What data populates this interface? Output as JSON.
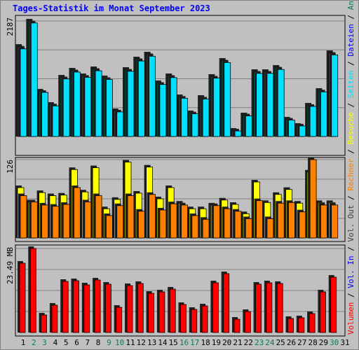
{
  "chart_data": {
    "type": "bar",
    "title": "Tages-Statistik im Monat September 2023",
    "categories": [
      "1",
      "2",
      "3",
      "4",
      "5",
      "6",
      "7",
      "8",
      "9",
      "10",
      "11",
      "12",
      "13",
      "14",
      "15",
      "16",
      "17",
      "18",
      "19",
      "20",
      "21",
      "22",
      "23",
      "24",
      "25",
      "26",
      "27",
      "28",
      "29",
      "30",
      "31"
    ],
    "weekend_indices": [
      1,
      2,
      8,
      9,
      15,
      16,
      22,
      23,
      29
    ],
    "weekday_color": "#000000",
    "weekend_color": "#00805c",
    "legend_separator": " / ",
    "legend": [
      {
        "name": "Volumen",
        "color": "#ff0000"
      },
      {
        "name": "Vol. In",
        "color": "#0000ff"
      },
      {
        "name": "Vol. Out",
        "color": "#404040"
      },
      {
        "name": "Rechner",
        "color": "#ff8000"
      },
      {
        "name": "Besuche",
        "color": "#ffff00"
      },
      {
        "name": "Seiten",
        "color": "#00e0ff"
      },
      {
        "name": "Dateien",
        "color": "#0000ff"
      },
      {
        "name": "Anfragen",
        "color": "#00805c"
      }
    ],
    "panels": [
      {
        "ylim": [
          0,
          2187
        ],
        "yticks": [
          2187
        ],
        "series": [
          {
            "name": "Anfragen",
            "color": "#00805c",
            "values": [
              1709,
              2187,
              861,
              610,
              1126,
              1259,
              1153,
              1285,
              1113,
              490,
              1272,
              1471,
              1564,
              1020,
              1153,
              755,
              451,
              742,
              1140,
              1444,
              119,
              411,
              1232,
              1232,
              1312,
              331,
              212,
              596,
              875,
              1590,
              null
            ]
          },
          {
            "name": "Seiten",
            "color": "#00e0ff",
            "values": [
              1660,
              2150,
              835,
              580,
              1090,
              1220,
              1120,
              1245,
              1080,
              465,
              1235,
              1430,
              1520,
              985,
              1115,
              725,
              430,
              710,
              1105,
              1400,
              105,
              390,
              1195,
              1195,
              1270,
              310,
              200,
              570,
              845,
              1545,
              null
            ]
          }
        ]
      },
      {
        "ylim": [
          0,
          126
        ],
        "yticks": [
          126
        ],
        "series": [
          {
            "name": "Besuche",
            "color": "#ffff00",
            "values": [
              81,
              58,
              73,
              68,
              69,
              110,
              74,
              113,
              47,
              62,
              122,
              72,
              114,
              63,
              81,
              56,
              47,
              47,
              53,
              61,
              54,
              39,
              90,
              57,
              70,
              78,
              56,
              106,
              57,
              57,
              null
            ]
          },
          {
            "name": "Rechner",
            "color": "#ff8000",
            "values": [
              68,
              58,
              53,
              51,
              54,
              81,
              58,
              68,
              36,
              52,
              68,
              43,
              70,
              45,
              55,
              53,
              36,
              30,
              52,
              47,
              43,
              31,
              60,
              31,
              56,
              57,
              42,
              126,
              53,
              53,
              null
            ]
          }
        ]
      },
      {
        "ylim": [
          0,
          23.49
        ],
        "yticks": [
          {
            "value": 23.49,
            "label": "23.49 MB"
          }
        ],
        "series": [
          {
            "name": "Volumen",
            "color": "#ff0000",
            "values": [
              19.38,
              23.49,
              4.9,
              7.64,
              14.29,
              14.49,
              13.31,
              14.69,
              13.51,
              7.05,
              13.12,
              13.71,
              10.96,
              11.36,
              12.14,
              7.83,
              6.46,
              7.44,
              13.9,
              16.45,
              3.72,
              5.87,
              13.51,
              13.9,
              13.71,
              3.92,
              4.11,
              5.29,
              11.36,
              15.47,
              null
            ]
          }
        ]
      }
    ]
  }
}
